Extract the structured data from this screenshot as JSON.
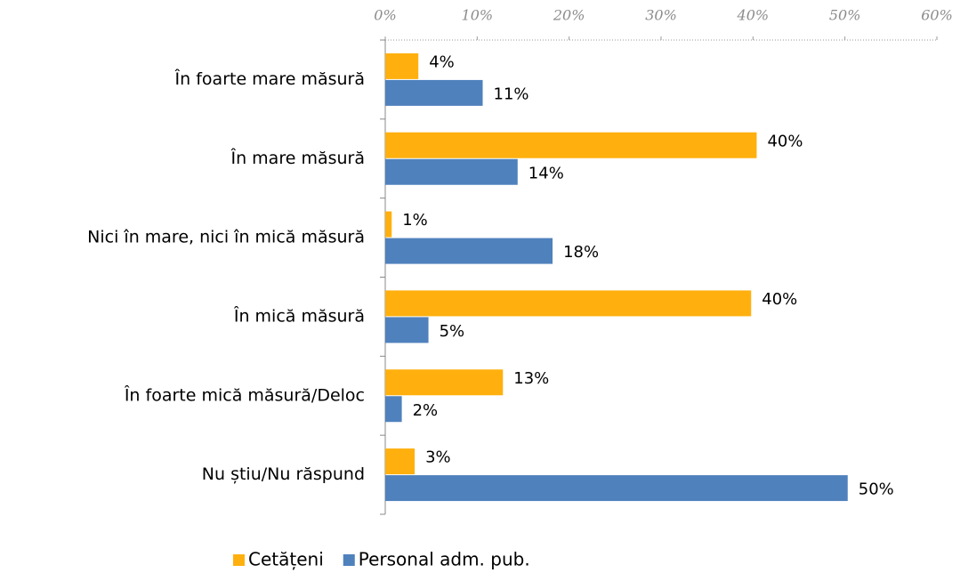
{
  "chart_data": {
    "type": "hbar",
    "categories": [
      "În foarte mare măsură",
      "În mare măsură",
      "Nici în mare, nici în mică măsură",
      "În mică măsură",
      "În foarte mică măsură/Deloc",
      "Nu știu/Nu răspund"
    ],
    "series": [
      {
        "name": "Cetățeni",
        "color": "#ffb00e",
        "values": [
          3.6,
          40.4,
          0.7,
          39.8,
          12.8,
          3.2
        ],
        "value_labels": [
          "4%",
          "40%",
          "1%",
          "40%",
          "13%",
          "3%"
        ]
      },
      {
        "name": "Personal adm. pub.",
        "color": "#4f81bd",
        "values": [
          10.6,
          14.4,
          18.2,
          4.7,
          1.8,
          50.3
        ],
        "value_labels": [
          "11%",
          "14%",
          "18%",
          "5%",
          "2%",
          "50%"
        ]
      }
    ],
    "xlim": [
      0,
      60
    ],
    "xticks": [
      {
        "value": 0,
        "label": "0%"
      },
      {
        "value": 10,
        "label": "10%"
      },
      {
        "value": 20,
        "label": "20%"
      },
      {
        "value": 30,
        "label": "30%"
      },
      {
        "value": 40,
        "label": "40%"
      },
      {
        "value": 50,
        "label": "50%"
      },
      {
        "value": 60,
        "label": "60%"
      }
    ],
    "legend": "bottom"
  }
}
